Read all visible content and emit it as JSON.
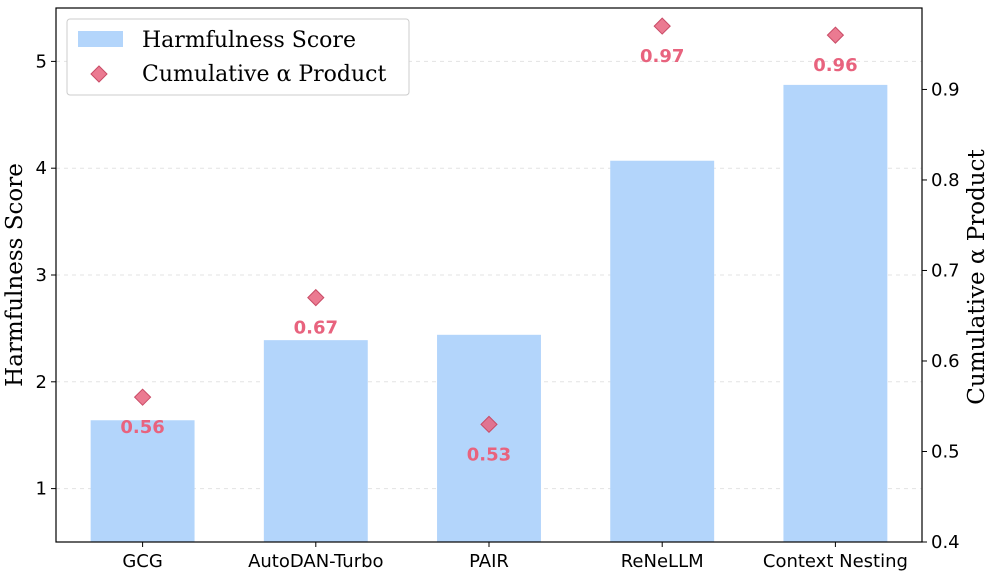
{
  "chart_data": {
    "type": "bar",
    "categories": [
      "GCG",
      "AutoDAN-Turbo",
      "PAIR",
      "ReNeLLM",
      "Context Nesting"
    ],
    "series": [
      {
        "name": "Harmfulness Score",
        "chart": "bar",
        "axis": "left",
        "values": [
          1.64,
          2.39,
          2.44,
          4.07,
          4.78
        ],
        "color": "#b3d5fb"
      },
      {
        "name": "Cumulative α Product",
        "chart": "scatter",
        "marker": "diamond",
        "axis": "right",
        "values": [
          0.56,
          0.67,
          0.53,
          0.97,
          0.96
        ],
        "labels": [
          "0.56",
          "0.67",
          "0.53",
          "0.97",
          "0.96"
        ],
        "color": "#e8637e"
      }
    ],
    "ylabel": "Harmfulness Score",
    "y2label": "Cumulative α Product",
    "ylim": [
      0.5,
      5.5
    ],
    "y2lim": [
      0.4,
      0.99
    ],
    "yticks": [
      "1",
      "2",
      "3",
      "4",
      "5"
    ],
    "y2ticks": [
      "0.4",
      "0.5",
      "0.6",
      "0.7",
      "0.8",
      "0.9"
    ],
    "grid": true,
    "legend_position": "top-left"
  }
}
